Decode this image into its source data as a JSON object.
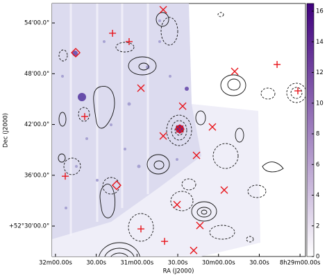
{
  "chart_data": {
    "type": "sky-map",
    "xlabel": "RA (J2000)",
    "ylabel": "Dec (J2000)",
    "xlim": [
      30722.5,
      30536
    ],
    "ylim": [
      26.4,
      56.3
    ],
    "xticks": [
      {
        "value": 30720,
        "label": "32m00.00s"
      },
      {
        "value": 30690,
        "label": "30.00s"
      },
      {
        "value": 30660,
        "label": "31m00.00s"
      },
      {
        "value": 30630,
        "label": "30.00s"
      },
      {
        "value": 30600,
        "label": "30m00.00s"
      },
      {
        "value": 30570,
        "label": "30.00s"
      },
      {
        "value": 30540,
        "label": "8h29m00.00s"
      }
    ],
    "yticks": [
      {
        "value": 54,
        "label": "54'00.0\""
      },
      {
        "value": 48,
        "label": "48'00.0\""
      },
      {
        "value": 42,
        "label": "42'00.0\""
      },
      {
        "value": 36,
        "label": "36'00.0\""
      },
      {
        "value": 30,
        "label": "+52°30'00.0\""
      }
    ],
    "colorbar": {
      "lim": [
        0,
        16.5
      ],
      "ticks": [
        0,
        2,
        4,
        6,
        8,
        10,
        12,
        14,
        16
      ],
      "colormap": [
        "#ffffff",
        "#3f007d"
      ]
    },
    "markers": [
      {
        "marker": "x",
        "color": "#e8141a",
        "x": [
          30640.7,
          30657.1,
          30626.4,
          30640.7,
          30604.5,
          30616.2,
          30595.8,
          30630.5,
          30613.7,
          30618.3,
          30588.1,
          30628.5
        ],
        "y": [
          55.56,
          46.3,
          44.17,
          40.64,
          41.71,
          38.35,
          34.25,
          32.53,
          30.07,
          27.12,
          48.27,
          41.46
        ]
      },
      {
        "marker": "+",
        "color": "#e8141a",
        "x": [
          30678.0,
          30665.8,
          30698.5,
          30712.8,
          30657.1,
          30639.7,
          30556.9,
          30541.6
        ],
        "y": [
          52.78,
          51.79,
          42.94,
          35.89,
          29.66,
          28.19,
          49.09,
          45.97
        ]
      },
      {
        "marker": "diamond",
        "color": "#e8141a",
        "x": [
          30705.1,
          30628.5,
          30675.0
        ],
        "y": [
          50.48,
          41.46,
          34.82
        ]
      }
    ]
  }
}
